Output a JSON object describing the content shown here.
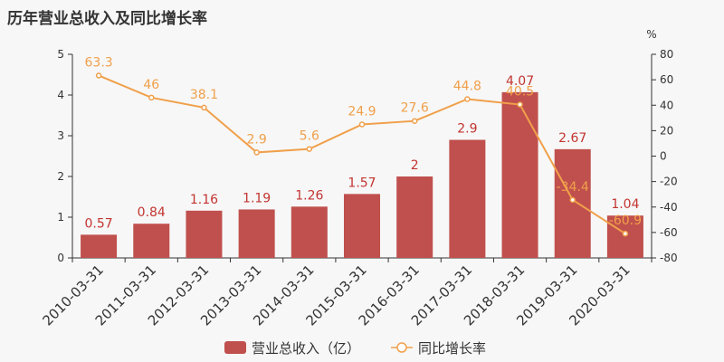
{
  "title": "历年营业总收入及同比增长率",
  "chart_data": {
    "type": "bar",
    "title": "历年营业总收入及同比增长率",
    "categories": [
      "2010-03-31",
      "2011-03-31",
      "2012-03-31",
      "2013-03-31",
      "2014-03-31",
      "2015-03-31",
      "2016-03-31",
      "2017-03-31",
      "2018-03-31",
      "2019-03-31",
      "2020-03-31"
    ],
    "series": [
      {
        "name": "营业总收入（亿）",
        "type": "bar",
        "axis": "left",
        "color": "#c0504d",
        "values": [
          0.57,
          0.84,
          1.16,
          1.19,
          1.26,
          1.57,
          2,
          2.9,
          4.07,
          2.67,
          1.04
        ],
        "labels": [
          "0.57",
          "0.84",
          "1.16",
          "1.19",
          "1.26",
          "1.57",
          "2",
          "2.9",
          "4.07",
          "2.67",
          "1.04"
        ]
      },
      {
        "name": "同比增长率",
        "type": "line",
        "axis": "right",
        "color": "#f0a04b",
        "values": [
          63.3,
          46,
          38.1,
          2.9,
          5.6,
          24.9,
          27.6,
          44.8,
          40.5,
          -34.4,
          -60.9
        ],
        "labels": [
          "63.3",
          "46",
          "38.1",
          "2.9",
          "5.6",
          "24.9",
          "27.6",
          "44.8",
          "40.5",
          "-34.4",
          "-60.9"
        ]
      }
    ],
    "y_left": {
      "ylim": [
        0,
        5
      ],
      "ticks": [
        "0",
        "1",
        "2",
        "3",
        "4",
        "5"
      ]
    },
    "y_right": {
      "unit": "%",
      "ylim": [
        -80,
        80
      ],
      "ticks": [
        "-80",
        "-60",
        "-40",
        "-20",
        "0",
        "20",
        "40",
        "60",
        "80"
      ]
    },
    "grid": false,
    "legend_position": "bottom-center"
  }
}
